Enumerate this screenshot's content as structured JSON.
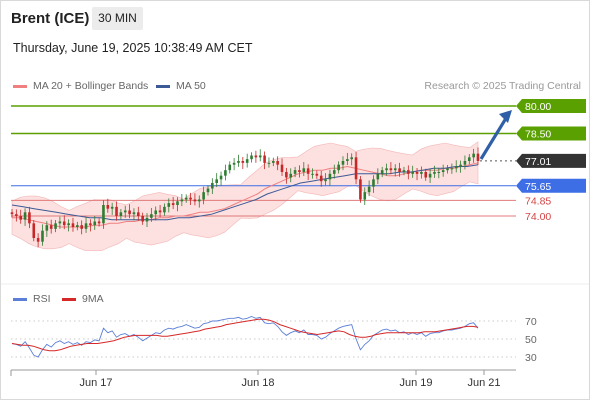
{
  "header": {
    "instrument": "Brent (ICE)",
    "timeframe": "30 MIN",
    "datetime": "Thursday, June 19, 2025 10:38:49 AM CET"
  },
  "legend": {
    "ma20": {
      "label": "MA 20 + Bollinger Bands",
      "color": "#f08080"
    },
    "ma50": {
      "label": "MA 50",
      "color": "#3c5a96"
    },
    "credit": "Research © 2025 Trading Central"
  },
  "rsi_legend": {
    "rsi": {
      "label": "RSI",
      "color": "#5b7fd6"
    },
    "ma9": {
      "label": "9MA",
      "color": "#d62828"
    }
  },
  "levels": [
    {
      "name": "resistance-2",
      "value": 80.0,
      "label": "80.00",
      "kind": "green-box"
    },
    {
      "name": "resistance-1",
      "value": 78.5,
      "label": "78.50",
      "kind": "green-box"
    },
    {
      "name": "current-price",
      "value": 77.01,
      "label": "77.01",
      "kind": "dark-box"
    },
    {
      "name": "pivot",
      "value": 75.65,
      "label": "75.65",
      "kind": "blue-box"
    },
    {
      "name": "support-1",
      "value": 74.85,
      "label": "74.85",
      "kind": "red-text"
    },
    {
      "name": "support-2",
      "value": 74.0,
      "label": "74.00",
      "kind": "red-text"
    }
  ],
  "x_labels": [
    "Jun 17",
    "Jun 18",
    "Jun 19",
    "Jun 21"
  ],
  "rsi_levels": [
    "70",
    "50",
    "30"
  ],
  "colors": {
    "bull": "#2e7d32",
    "bear": "#c62828",
    "green_level": "#5aa000",
    "pivot": "#3d6ee6",
    "support": "#e07a7a",
    "band_fill": "#fde0e0",
    "arrow": "#2f5fa7",
    "price_box": "#333333"
  },
  "chart_data": {
    "type": "candlestick",
    "y_axis": {
      "min": 72.0,
      "max": 81.0
    },
    "closes": [
      74.1,
      74.0,
      73.8,
      74.2,
      73.6,
      72.8,
      72.6,
      73.2,
      73.5,
      73.3,
      73.6,
      73.7,
      73.5,
      73.6,
      73.4,
      73.5,
      73.3,
      73.6,
      73.5,
      73.7,
      73.6,
      74.6,
      74.4,
      74.5,
      74.0,
      74.2,
      74.3,
      74.1,
      74.2,
      74.0,
      73.7,
      73.9,
      74.1,
      74.3,
      74.2,
      74.5,
      74.7,
      74.6,
      74.8,
      74.9,
      75.0,
      74.9,
      74.8,
      74.9,
      75.3,
      75.5,
      75.8,
      76.0,
      76.2,
      76.5,
      76.8,
      76.9,
      77.0,
      76.9,
      77.1,
      77.3,
      77.2,
      77.3,
      76.9,
      76.9,
      77.0,
      76.8,
      76.4,
      76.1,
      76.3,
      76.5,
      76.4,
      76.6,
      76.3,
      76.3,
      76.2,
      75.9,
      76.0,
      76.3,
      76.5,
      76.8,
      77.0,
      77.1,
      77.2,
      76.0,
      74.9,
      75.3,
      75.6,
      76.0,
      76.3,
      76.5,
      76.6,
      76.5,
      76.6,
      76.4,
      76.5,
      76.3,
      76.4,
      76.3,
      76.4,
      76.1,
      76.3,
      76.4,
      76.4,
      76.5,
      76.6,
      76.6,
      76.7,
      76.8,
      77.0,
      77.2,
      77.4,
      77.0
    ],
    "ma20": [
      73.9,
      73.9,
      73.8,
      73.7,
      73.6,
      73.5,
      73.4,
      73.4,
      73.4,
      73.4,
      73.5,
      73.5,
      73.6,
      73.6,
      73.7,
      73.7,
      73.8,
      73.8,
      73.9,
      73.9,
      74.0,
      74.0,
      74.1,
      74.2,
      74.2,
      74.3,
      74.4,
      74.6,
      74.8,
      75.0,
      75.2,
      75.5,
      75.7,
      75.9,
      76.1,
      76.3,
      76.4,
      76.5,
      76.5,
      76.6,
      76.6,
      76.7,
      76.6,
      76.5,
      76.4,
      76.3,
      76.2,
      76.2,
      76.3,
      76.4,
      76.5,
      76.5,
      76.5,
      76.6,
      76.6,
      76.7,
      76.8,
      76.9
    ],
    "ma50": [
      74.6,
      74.5,
      74.4,
      74.3,
      74.2,
      74.1,
      74.0,
      73.9,
      73.9,
      73.8,
      73.8,
      73.8,
      73.8,
      73.8,
      73.8,
      73.9,
      73.9,
      74.0,
      74.1,
      74.3,
      74.5,
      74.7,
      74.9,
      75.2,
      75.4,
      75.6,
      75.8,
      75.9,
      76.0,
      76.1,
      76.2,
      76.3,
      76.3,
      76.3,
      76.3,
      76.4,
      76.4,
      76.5,
      76.6,
      76.6,
      76.7,
      76.7,
      76.8
    ],
    "rsi": [
      45,
      44,
      42,
      47,
      40,
      32,
      30,
      38,
      44,
      41,
      46,
      48,
      45,
      47,
      44,
      46,
      43,
      47,
      46,
      49,
      48,
      62,
      57,
      59,
      52,
      55,
      56,
      53,
      55,
      52,
      48,
      51,
      54,
      57,
      56,
      60,
      62,
      61,
      63,
      64,
      66,
      64,
      62,
      63,
      67,
      68,
      70,
      70,
      71,
      72,
      73,
      73,
      74,
      72,
      73,
      75,
      73,
      74,
      68,
      67,
      68,
      64,
      58,
      54,
      57,
      59,
      57,
      60,
      55,
      55,
      54,
      50,
      52,
      56,
      59,
      62,
      64,
      65,
      66,
      50,
      38,
      44,
      48,
      54,
      57,
      60,
      61,
      59,
      60,
      57,
      58,
      55,
      57,
      55,
      57,
      53,
      56,
      57,
      57,
      59,
      60,
      60,
      61,
      62,
      64,
      67,
      68,
      62
    ],
    "rsi_ma9": [
      45,
      44,
      43,
      43,
      42,
      40,
      38,
      37,
      37,
      38,
      40,
      42,
      43,
      44,
      45,
      45,
      45,
      46,
      47,
      48,
      50,
      52,
      53,
      54,
      54,
      54,
      54,
      54,
      53,
      53,
      54,
      55,
      56,
      57,
      58,
      59,
      61,
      62,
      63,
      64,
      66,
      67,
      68,
      69,
      70,
      71,
      72,
      72,
      71,
      69,
      66,
      64,
      62,
      60,
      58,
      57,
      56,
      55,
      56,
      57,
      58,
      59,
      58,
      55,
      53,
      52,
      52,
      53,
      55,
      56,
      57,
      57,
      57,
      57,
      57,
      57,
      57,
      58,
      58,
      58,
      59,
      60,
      61,
      62,
      63,
      64,
      64,
      63
    ]
  }
}
